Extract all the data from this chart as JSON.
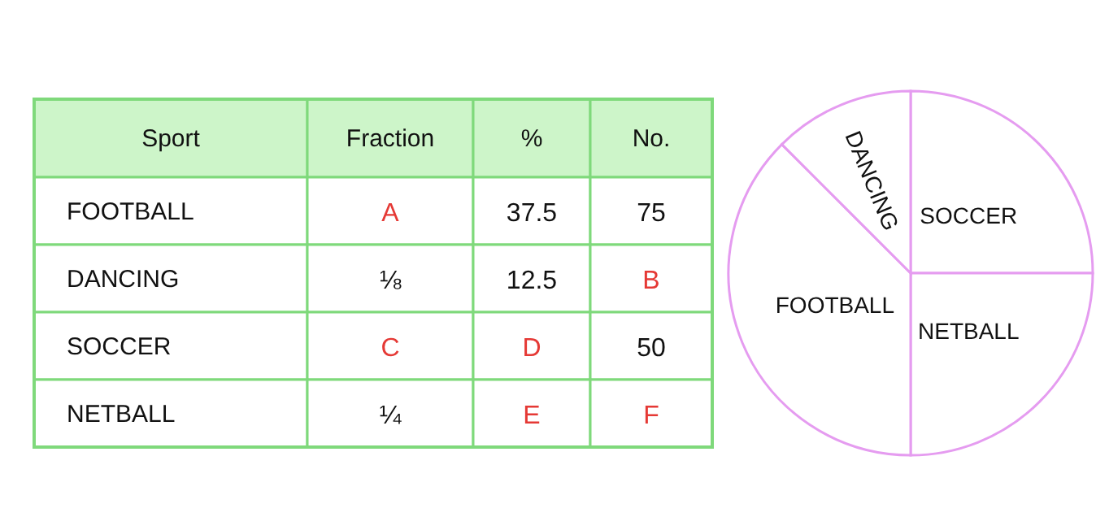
{
  "chart_data": [
    {
      "type": "other",
      "categories": [
        "Sport",
        "Fraction",
        "%",
        "No."
      ],
      "y_categories": [
        "FOOTBALL",
        "DANCING",
        "SOCCER",
        "NETBALL"
      ],
      "cells": [
        [
          "A",
          "37.5",
          "75"
        ],
        [
          "⅛",
          "12.5",
          "B"
        ],
        [
          "C",
          "D",
          "50"
        ],
        [
          "¼",
          "E",
          "F"
        ]
      ],
      "colors": [
        [
          "#e53935",
          "#111111",
          "#111111"
        ],
        [
          "#111111",
          "#111111",
          "#e53935"
        ],
        [
          "#e53935",
          "#e53935",
          "#111111"
        ],
        [
          "#111111",
          "#e53935",
          "#e53935"
        ]
      ]
    },
    {
      "type": "pie",
      "categories": [
        "SOCCER",
        "NETBALL",
        "FOOTBALL",
        "DANCING"
      ],
      "values": [
        25,
        25,
        37.5,
        12.5
      ],
      "colors": [
        "#ffffff",
        "#ffffff",
        "#ffffff",
        "#ffffff"
      ]
    }
  ]
}
